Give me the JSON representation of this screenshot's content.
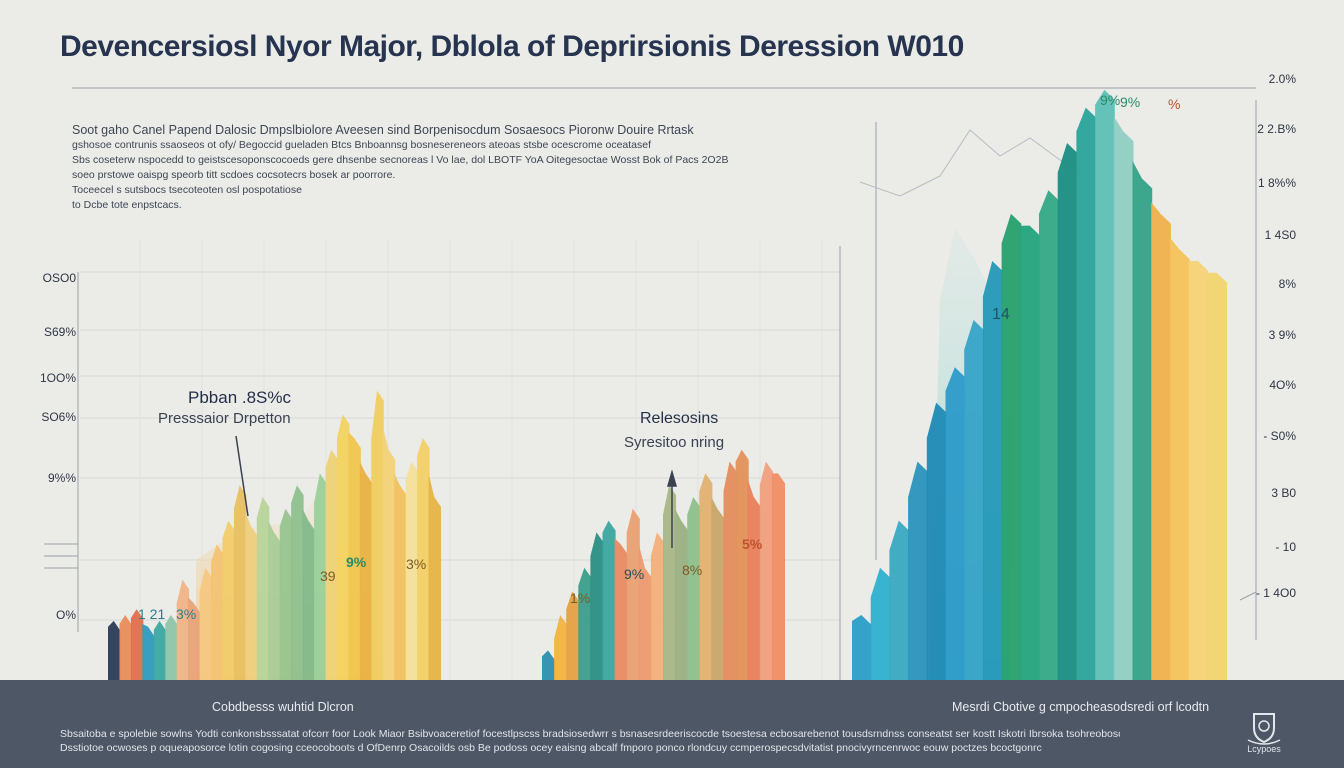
{
  "header": {
    "title": "Devencersiosl Nyor Major, Dblola of Deprirsionis Deression W010"
  },
  "description": {
    "lead": "Soot gaho Canel Papend Dalosic Dmpslbiolore Aveesen sind Borpenisocdum Sosaesocs Pioronw Douire Rrtask",
    "lines": [
      "gshosoe contrunis ssaoseos ot ofy/ Begoccid gueladen Btcs Bnboannsg bosnesereneors ateoas stsbe ocescrome oceatasef",
      "Sbs coseterw nspocedd to geistscesoponscocoeds gere dhsenbe secnoreas l Vo lae, dol LBOTF YoA Oitegesoctae Wosst Bok of Pacs 2O2B",
      "soeo prstowe oaispg speorb titt scdoes cocsotecrs bosek ar poorrore.",
      "Toceecel s sutsbocs tsecoteoten osl pospotatiose",
      "to Dcbe tote enpstcacs."
    ]
  },
  "left_axis": [
    "OSO0",
    "S69%",
    "1OO%",
    "SO6%",
    "9%%",
    "O%"
  ],
  "right_axis": [
    "2.0%",
    "2 2.B%",
    "1 8%%",
    "1 4S0",
    "8%",
    "3 9%",
    "4O%",
    "- S0%",
    "3 B0",
    "- 10",
    "- 1 4O0"
  ],
  "annotations": {
    "left_title": "Pbban .8S%c",
    "left_sub": "Presssaior Drpetton",
    "mid_title": "Relesosins",
    "mid_sub": "Syresitoo nring"
  },
  "chart_data": {
    "type": "bar",
    "title": "Devencersiosl Nyor Major, Dblola of Deprirsionis Deression W010",
    "xlabel": "",
    "ylabel": "",
    "ylim": [
      0,
      100
    ],
    "grid": true,
    "groups": [
      {
        "name": "Group A",
        "values": [
          9,
          10,
          11,
          8,
          9,
          10,
          16,
          12,
          18,
          22,
          26,
          32,
          25,
          30,
          24,
          28,
          32,
          26,
          34,
          38,
          44,
          40,
          34,
          48,
          38,
          32,
          36,
          40,
          30
        ],
        "colors": [
          "#2b3b57",
          "#e98c5a",
          "#e06f4d",
          "#2f9bbf",
          "#3ba8a2",
          "#8fc5a8",
          "#f0b488",
          "#e9a378",
          "#f4c882",
          "#f3c372",
          "#f1cc6a",
          "#e9c060",
          "#eecf7e",
          "#b7d49a",
          "#a8cc98",
          "#97c48f",
          "#8ec08e",
          "#82b98a",
          "#9ad09a",
          "#eed277",
          "#f3d35f",
          "#f0c64d",
          "#e9b242",
          "#f0cd60",
          "#f3d276",
          "#f2c15d",
          "#f6e09a",
          "#f3d166",
          "#e6b444"
        ]
      },
      {
        "name": "Group B",
        "values": [
          4,
          10,
          14,
          18,
          24,
          26,
          22,
          28,
          18,
          24,
          32,
          26,
          30,
          34,
          28,
          36,
          38,
          30,
          36,
          34
        ],
        "colors": [
          "#2d8fb0",
          "#f2b43d",
          "#e6a043",
          "#3a9e8b",
          "#2b8f84",
          "#3aa7a0",
          "#e98b61",
          "#e9a071",
          "#ee9a6e",
          "#f2b078",
          "#a9b685",
          "#9ab183",
          "#8ec08c",
          "#e2b16f",
          "#c9a769",
          "#e48c5d",
          "#e39158",
          "#e97f59",
          "#f0a07d",
          "#f08e63"
        ]
      },
      {
        "name": "Group C",
        "values": [
          10,
          18,
          26,
          36,
          46,
          52,
          60,
          70,
          78,
          76,
          82,
          90,
          96,
          99,
          92,
          84,
          78,
          72,
          70,
          68
        ],
        "colors": [
          "#2b9ec8",
          "#2eb0cf",
          "#3aa9c3",
          "#2a94bd",
          "#1f8ab5",
          "#2c9ac8",
          "#37a3c7",
          "#2599b7",
          "#27a06d",
          "#24a37d",
          "#33a985",
          "#1b8e83",
          "#2aa39a",
          "#5dc0b5",
          "#8fcfc1",
          "#34a389",
          "#f0b14c",
          "#f4c35a",
          "#f7d375",
          "#f3d56e"
        ]
      }
    ],
    "data_labels": [
      "1 21",
      "3%",
      "39",
      "9%",
      "3%",
      "1%",
      "9%",
      "8%",
      "5%",
      "9%",
      "14",
      "9%",
      "%"
    ]
  },
  "footer": {
    "caption_left": "Cobdbesss wuhtid Dlcron",
    "caption_right": "Mesrdi Cbotive g cmpocheasodsredi orf lcodtn",
    "lines": [
      "Sbsaitoba e spolebie sowlns Yodti conkonsbsssatat ofcorr foor Look Miaor Bsibvoaceretiof focestlpscss bradsiosedwrr s bsnasesrdeeriscocde tsoestesa ecbosarebenot tousdsrndnss conseatst ser kostt Iskotri Ibrsoka tsohreoboscs oshoonnecs",
      "Dsstiotoe ocwoses p oqueaposorce lotin cogosing cceocoboots d OfDenrp Osacoilds osb Be podoss ocey eaisng abcalf fmporo ponco rlondcuy ccmperospecsdvitatist pnocivyrncenrwoc eouw poctzes bcoctgonrc"
    ],
    "logo_text": "Lcypoes"
  }
}
